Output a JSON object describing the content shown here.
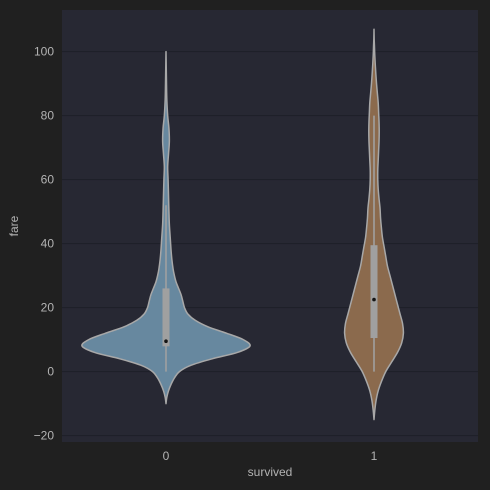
{
  "chart_data": {
    "type": "violin",
    "title": "",
    "xlabel": "survived",
    "ylabel": "fare",
    "categories": [
      "0",
      "1"
    ],
    "ylim": [
      -22,
      113
    ],
    "yticks": [
      -20,
      0,
      20,
      40,
      60,
      80,
      100
    ],
    "grid": true,
    "colors": {
      "figure_bg": "#202020",
      "axes_bg": "#272833",
      "grid": "#1e1f28",
      "text": "#b3b3b3",
      "violin_outline": "#a8a8a8",
      "box": "#a0a0a0",
      "median": "#141414"
    },
    "series": [
      {
        "category": "0",
        "color": "#67889f",
        "violin_range": [
          -10,
          100
        ],
        "box": {
          "whisker_low": 0,
          "q1": 7.9,
          "median": 9.5,
          "q3": 26,
          "whisker_high": 52
        },
        "density": [
          [
            -10,
            0.0
          ],
          [
            -8,
            0.01
          ],
          [
            -6,
            0.03
          ],
          [
            -4,
            0.06
          ],
          [
            -2,
            0.1
          ],
          [
            0,
            0.16
          ],
          [
            2,
            0.3
          ],
          [
            4,
            0.55
          ],
          [
            6,
            0.85
          ],
          [
            8,
            1.0
          ],
          [
            10,
            0.92
          ],
          [
            12,
            0.72
          ],
          [
            14,
            0.5
          ],
          [
            16,
            0.35
          ],
          [
            18,
            0.26
          ],
          [
            20,
            0.22
          ],
          [
            22,
            0.2
          ],
          [
            24,
            0.18
          ],
          [
            26,
            0.15
          ],
          [
            28,
            0.12
          ],
          [
            30,
            0.1
          ],
          [
            32,
            0.085
          ],
          [
            35,
            0.07
          ],
          [
            38,
            0.06
          ],
          [
            42,
            0.05
          ],
          [
            46,
            0.04
          ],
          [
            50,
            0.035
          ],
          [
            55,
            0.03
          ],
          [
            60,
            0.025
          ],
          [
            64,
            0.02
          ],
          [
            68,
            0.03
          ],
          [
            72,
            0.04
          ],
          [
            76,
            0.035
          ],
          [
            80,
            0.02
          ],
          [
            85,
            0.01
          ],
          [
            90,
            0.006
          ],
          [
            95,
            0.003
          ],
          [
            100,
            0.0
          ]
        ]
      },
      {
        "category": "1",
        "color": "#8b6a4d",
        "violin_range": [
          -15,
          107
        ],
        "box": {
          "whisker_low": 0,
          "q1": 10.5,
          "median": 22.5,
          "q3": 39.5,
          "whisker_high": 80
        },
        "density": [
          [
            -15,
            0.0
          ],
          [
            -12,
            0.01
          ],
          [
            -9,
            0.025
          ],
          [
            -6,
            0.05
          ],
          [
            -3,
            0.09
          ],
          [
            0,
            0.14
          ],
          [
            3,
            0.21
          ],
          [
            6,
            0.28
          ],
          [
            9,
            0.33
          ],
          [
            12,
            0.35
          ],
          [
            15,
            0.34
          ],
          [
            18,
            0.31
          ],
          [
            21,
            0.28
          ],
          [
            24,
            0.25
          ],
          [
            27,
            0.22
          ],
          [
            30,
            0.19
          ],
          [
            33,
            0.16
          ],
          [
            36,
            0.14
          ],
          [
            39,
            0.12
          ],
          [
            42,
            0.1
          ],
          [
            45,
            0.088
          ],
          [
            48,
            0.078
          ],
          [
            51,
            0.072
          ],
          [
            54,
            0.06
          ],
          [
            57,
            0.05
          ],
          [
            60,
            0.045
          ],
          [
            63,
            0.045
          ],
          [
            66,
            0.05
          ],
          [
            69,
            0.055
          ],
          [
            72,
            0.06
          ],
          [
            75,
            0.062
          ],
          [
            78,
            0.06
          ],
          [
            81,
            0.055
          ],
          [
            84,
            0.05
          ],
          [
            87,
            0.04
          ],
          [
            90,
            0.03
          ],
          [
            93,
            0.022
          ],
          [
            96,
            0.015
          ],
          [
            99,
            0.009
          ],
          [
            102,
            0.005
          ],
          [
            104,
            0.002
          ],
          [
            107,
            0.0
          ]
        ]
      }
    ]
  }
}
